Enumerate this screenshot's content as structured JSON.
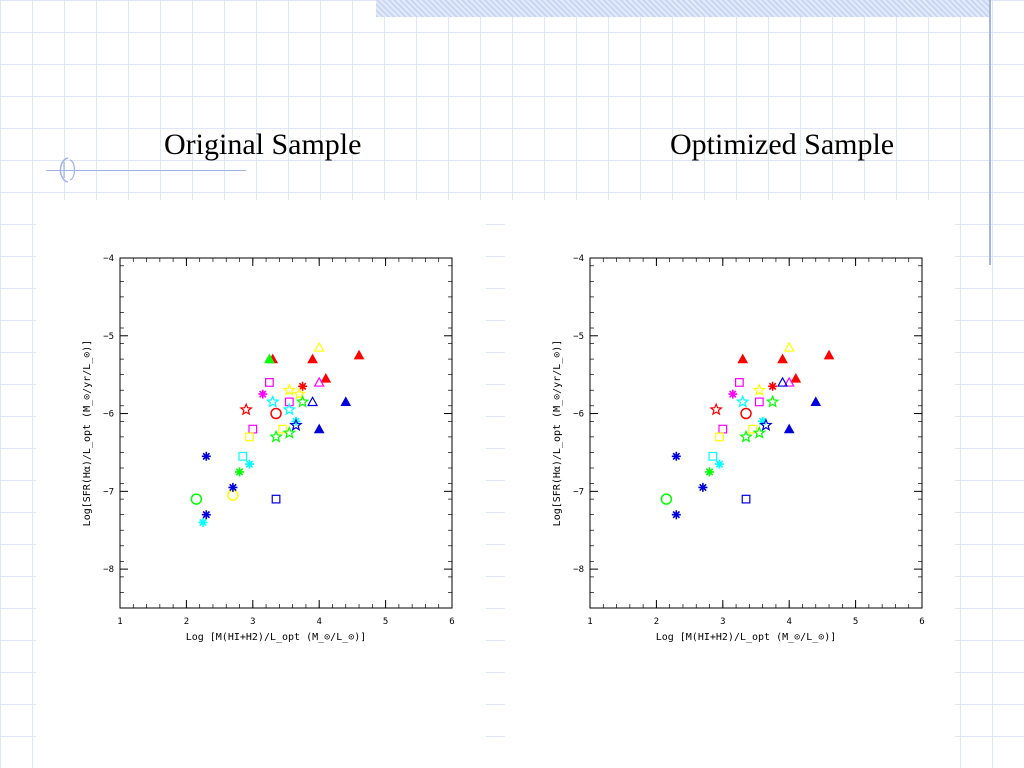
{
  "slide": {
    "title_left": "Original Sample",
    "title_right": "Optimized Sample"
  },
  "colors": {
    "red": "#ff0000",
    "magenta": "#ff00ff",
    "blue": "#0000dd",
    "green": "#00ff00",
    "cyan": "#00ffff",
    "yellow": "#ffff00",
    "accent": "#9fb3e6"
  },
  "chart_data": [
    {
      "type": "scatter",
      "title": "Original Sample",
      "xlabel": "Log [M(HI+H2)/L_opt (M_⊙/L_⊙)]",
      "ylabel": "Log[SFR(Hα)/L_opt (M_⊙/yr/L_⊙)]",
      "xlim": [
        1,
        6
      ],
      "ylim": [
        -8.5,
        -4
      ],
      "xticks": [
        1,
        2,
        3,
        4,
        5,
        6
      ],
      "yticks": [
        -4,
        -5,
        -6,
        -7,
        -8
      ],
      "points": [
        {
          "x": 3.3,
          "y": -5.3,
          "marker": "triangle-filled",
          "color": "red"
        },
        {
          "x": 3.9,
          "y": -5.3,
          "marker": "triangle-filled",
          "color": "red"
        },
        {
          "x": 4.6,
          "y": -5.25,
          "marker": "triangle-filled",
          "color": "red"
        },
        {
          "x": 4.1,
          "y": -5.55,
          "marker": "triangle-filled",
          "color": "red"
        },
        {
          "x": 3.75,
          "y": -5.65,
          "marker": "asterisk",
          "color": "red"
        },
        {
          "x": 2.9,
          "y": -5.95,
          "marker": "star-open",
          "color": "red"
        },
        {
          "x": 3.35,
          "y": -6.0,
          "marker": "circle-open",
          "color": "red"
        },
        {
          "x": 3.25,
          "y": -5.3,
          "marker": "triangle-filled",
          "color": "green"
        },
        {
          "x": 4.0,
          "y": -5.15,
          "marker": "triangle-open",
          "color": "yellow"
        },
        {
          "x": 3.25,
          "y": -5.6,
          "marker": "square-open",
          "color": "magenta"
        },
        {
          "x": 4.0,
          "y": -5.6,
          "marker": "triangle-open",
          "color": "magenta"
        },
        {
          "x": 3.15,
          "y": -5.75,
          "marker": "asterisk",
          "color": "magenta"
        },
        {
          "x": 3.55,
          "y": -5.85,
          "marker": "square-open",
          "color": "magenta"
        },
        {
          "x": 3.0,
          "y": -6.2,
          "marker": "square-open",
          "color": "magenta"
        },
        {
          "x": 3.55,
          "y": -5.7,
          "marker": "star-open",
          "color": "yellow"
        },
        {
          "x": 3.7,
          "y": -5.75,
          "marker": "star-open",
          "color": "yellow"
        },
        {
          "x": 3.45,
          "y": -6.2,
          "marker": "square-open",
          "color": "yellow"
        },
        {
          "x": 2.95,
          "y": -6.3,
          "marker": "square-open",
          "color": "yellow"
        },
        {
          "x": 2.7,
          "y": -7.05,
          "marker": "circle-open",
          "color": "yellow"
        },
        {
          "x": 3.3,
          "y": -5.85,
          "marker": "star-open",
          "color": "cyan"
        },
        {
          "x": 3.55,
          "y": -5.95,
          "marker": "star-open",
          "color": "cyan"
        },
        {
          "x": 3.65,
          "y": -6.1,
          "marker": "asterisk",
          "color": "cyan"
        },
        {
          "x": 2.85,
          "y": -6.55,
          "marker": "square-open",
          "color": "cyan"
        },
        {
          "x": 2.95,
          "y": -6.65,
          "marker": "asterisk",
          "color": "cyan"
        },
        {
          "x": 2.25,
          "y": -7.4,
          "marker": "asterisk",
          "color": "cyan"
        },
        {
          "x": 3.75,
          "y": -5.85,
          "marker": "star-open",
          "color": "green"
        },
        {
          "x": 3.35,
          "y": -6.3,
          "marker": "star-open",
          "color": "green"
        },
        {
          "x": 3.55,
          "y": -6.25,
          "marker": "star-open",
          "color": "green"
        },
        {
          "x": 2.8,
          "y": -6.75,
          "marker": "asterisk",
          "color": "green"
        },
        {
          "x": 2.15,
          "y": -7.1,
          "marker": "circle-open",
          "color": "green"
        },
        {
          "x": 3.9,
          "y": -5.85,
          "marker": "triangle-open",
          "color": "blue"
        },
        {
          "x": 4.4,
          "y": -5.85,
          "marker": "triangle-filled",
          "color": "blue"
        },
        {
          "x": 4.0,
          "y": -6.2,
          "marker": "triangle-filled",
          "color": "blue"
        },
        {
          "x": 3.65,
          "y": -6.15,
          "marker": "star-open",
          "color": "blue"
        },
        {
          "x": 2.3,
          "y": -6.55,
          "marker": "asterisk",
          "color": "blue"
        },
        {
          "x": 2.7,
          "y": -6.95,
          "marker": "asterisk",
          "color": "blue"
        },
        {
          "x": 2.3,
          "y": -7.3,
          "marker": "asterisk",
          "color": "blue"
        },
        {
          "x": 3.35,
          "y": -7.1,
          "marker": "square-open",
          "color": "blue"
        }
      ]
    },
    {
      "type": "scatter",
      "title": "Optimized Sample",
      "xlabel": "Log [M(HI+H2)/L_opt (M_⊙/L_⊙)]",
      "ylabel": "Log[SFR(Hα)/L_opt (M_⊙/yr/L_⊙)]",
      "xlim": [
        1,
        6
      ],
      "ylim": [
        -8.5,
        -4
      ],
      "xticks": [
        1,
        2,
        3,
        4,
        5,
        6
      ],
      "yticks": [
        -4,
        -5,
        -6,
        -7,
        -8
      ],
      "points": [
        {
          "x": 3.3,
          "y": -5.3,
          "marker": "triangle-filled",
          "color": "red"
        },
        {
          "x": 3.9,
          "y": -5.3,
          "marker": "triangle-filled",
          "color": "red"
        },
        {
          "x": 4.6,
          "y": -5.25,
          "marker": "triangle-filled",
          "color": "red"
        },
        {
          "x": 4.1,
          "y": -5.55,
          "marker": "triangle-filled",
          "color": "red"
        },
        {
          "x": 3.75,
          "y": -5.65,
          "marker": "asterisk",
          "color": "red"
        },
        {
          "x": 2.9,
          "y": -5.95,
          "marker": "star-open",
          "color": "red"
        },
        {
          "x": 3.35,
          "y": -6.0,
          "marker": "circle-open",
          "color": "red"
        },
        {
          "x": 4.0,
          "y": -5.15,
          "marker": "triangle-open",
          "color": "yellow"
        },
        {
          "x": 3.25,
          "y": -5.6,
          "marker": "square-open",
          "color": "magenta"
        },
        {
          "x": 4.0,
          "y": -5.6,
          "marker": "triangle-open",
          "color": "magenta"
        },
        {
          "x": 3.15,
          "y": -5.75,
          "marker": "asterisk",
          "color": "magenta"
        },
        {
          "x": 3.55,
          "y": -5.85,
          "marker": "square-open",
          "color": "magenta"
        },
        {
          "x": 3.0,
          "y": -6.2,
          "marker": "square-open",
          "color": "magenta"
        },
        {
          "x": 3.55,
          "y": -5.7,
          "marker": "star-open",
          "color": "yellow"
        },
        {
          "x": 3.45,
          "y": -6.2,
          "marker": "square-open",
          "color": "yellow"
        },
        {
          "x": 2.95,
          "y": -6.3,
          "marker": "square-open",
          "color": "yellow"
        },
        {
          "x": 3.3,
          "y": -5.85,
          "marker": "star-open",
          "color": "cyan"
        },
        {
          "x": 3.6,
          "y": -6.1,
          "marker": "asterisk",
          "color": "cyan"
        },
        {
          "x": 2.85,
          "y": -6.55,
          "marker": "square-open",
          "color": "cyan"
        },
        {
          "x": 2.95,
          "y": -6.65,
          "marker": "asterisk",
          "color": "cyan"
        },
        {
          "x": 3.75,
          "y": -5.85,
          "marker": "star-open",
          "color": "green"
        },
        {
          "x": 3.35,
          "y": -6.3,
          "marker": "star-open",
          "color": "green"
        },
        {
          "x": 3.55,
          "y": -6.25,
          "marker": "star-open",
          "color": "green"
        },
        {
          "x": 2.8,
          "y": -6.75,
          "marker": "asterisk",
          "color": "green"
        },
        {
          "x": 2.15,
          "y": -7.1,
          "marker": "circle-open",
          "color": "green"
        },
        {
          "x": 3.9,
          "y": -5.6,
          "marker": "triangle-open",
          "color": "blue"
        },
        {
          "x": 4.4,
          "y": -5.85,
          "marker": "triangle-filled",
          "color": "blue"
        },
        {
          "x": 4.0,
          "y": -6.2,
          "marker": "triangle-filled",
          "color": "blue"
        },
        {
          "x": 3.65,
          "y": -6.15,
          "marker": "star-open",
          "color": "blue"
        },
        {
          "x": 2.3,
          "y": -6.55,
          "marker": "asterisk",
          "color": "blue"
        },
        {
          "x": 2.7,
          "y": -6.95,
          "marker": "asterisk",
          "color": "blue"
        },
        {
          "x": 2.3,
          "y": -7.3,
          "marker": "asterisk",
          "color": "blue"
        },
        {
          "x": 3.35,
          "y": -7.1,
          "marker": "square-open",
          "color": "blue"
        }
      ]
    }
  ]
}
